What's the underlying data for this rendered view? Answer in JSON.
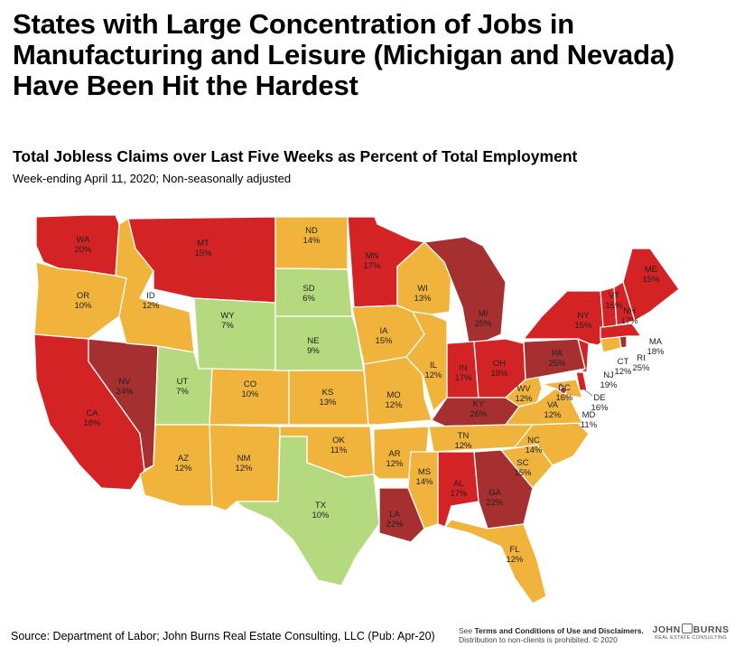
{
  "header": {
    "headline": "States with Large Concentration of Jobs in Manufacturing and Leisure (Michigan and Nevada) Have Been Hit the Hardest",
    "subtitle": "Total Jobless Claims over Last Five Weeks as Percent of Total Employment",
    "note": "Week-ending April 11, 2020; Non-seasonally adjusted"
  },
  "colors": {
    "dark_red": "#a62f2f",
    "red": "#d42325",
    "orange": "#f0b43c",
    "light_green": "#b5d97e",
    "border": "#ffffff"
  },
  "states": [
    {
      "code": "WA",
      "value": "20%",
      "color": "#d42325"
    },
    {
      "code": "OR",
      "value": "10%",
      "color": "#f0b43c"
    },
    {
      "code": "CA",
      "value": "18%",
      "color": "#d42325"
    },
    {
      "code": "NV",
      "value": "24%",
      "color": "#a62f2f"
    },
    {
      "code": "ID",
      "value": "12%",
      "color": "#f0b43c"
    },
    {
      "code": "MT",
      "value": "15%",
      "color": "#d42325"
    },
    {
      "code": "WY",
      "value": "7%",
      "color": "#b5d97e"
    },
    {
      "code": "UT",
      "value": "7%",
      "color": "#b5d97e"
    },
    {
      "code": "AZ",
      "value": "12%",
      "color": "#f0b43c"
    },
    {
      "code": "CO",
      "value": "10%",
      "color": "#f0b43c"
    },
    {
      "code": "NM",
      "value": "12%",
      "color": "#f0b43c"
    },
    {
      "code": "ND",
      "value": "14%",
      "color": "#f0b43c"
    },
    {
      "code": "SD",
      "value": "6%",
      "color": "#b5d97e"
    },
    {
      "code": "NE",
      "value": "9%",
      "color": "#b5d97e"
    },
    {
      "code": "KS",
      "value": "13%",
      "color": "#f0b43c"
    },
    {
      "code": "OK",
      "value": "11%",
      "color": "#f0b43c"
    },
    {
      "code": "TX",
      "value": "10%",
      "color": "#b5d97e"
    },
    {
      "code": "MN",
      "value": "17%",
      "color": "#d42325"
    },
    {
      "code": "IA",
      "value": "15%",
      "color": "#f0b43c"
    },
    {
      "code": "MO",
      "value": "12%",
      "color": "#f0b43c"
    },
    {
      "code": "AR",
      "value": "12%",
      "color": "#f0b43c"
    },
    {
      "code": "LA",
      "value": "22%",
      "color": "#a62f2f"
    },
    {
      "code": "WI",
      "value": "13%",
      "color": "#f0b43c"
    },
    {
      "code": "IL",
      "value": "12%",
      "color": "#f0b43c"
    },
    {
      "code": "MI",
      "value": "25%",
      "color": "#a62f2f"
    },
    {
      "code": "IN",
      "value": "17%",
      "color": "#d42325"
    },
    {
      "code": "OH",
      "value": "18%",
      "color": "#d42325"
    },
    {
      "code": "KY",
      "value": "26%",
      "color": "#a62f2f"
    },
    {
      "code": "TN",
      "value": "12%",
      "color": "#f0b43c"
    },
    {
      "code": "MS",
      "value": "14%",
      "color": "#f0b43c"
    },
    {
      "code": "AL",
      "value": "17%",
      "color": "#d42325"
    },
    {
      "code": "GA",
      "value": "22%",
      "color": "#a62f2f"
    },
    {
      "code": "FL",
      "value": "12%",
      "color": "#f0b43c"
    },
    {
      "code": "SC",
      "value": "15%",
      "color": "#f0b43c"
    },
    {
      "code": "NC",
      "value": "14%",
      "color": "#f0b43c"
    },
    {
      "code": "VA",
      "value": "12%",
      "color": "#f0b43c"
    },
    {
      "code": "WV",
      "value": "12%",
      "color": "#f0b43c"
    },
    {
      "code": "PA",
      "value": "25%",
      "color": "#a62f2f"
    },
    {
      "code": "NY",
      "value": "15%",
      "color": "#d42325"
    },
    {
      "code": "VT",
      "value": "15%",
      "color": "#d42325"
    },
    {
      "code": "NH",
      "value": "17%",
      "color": "#d42325"
    },
    {
      "code": "ME",
      "value": "15%",
      "color": "#d42325"
    },
    {
      "code": "MA",
      "value": "18%",
      "color": "#d42325"
    },
    {
      "code": "RI",
      "value": "25%",
      "color": "#a62f2f"
    },
    {
      "code": "CT",
      "value": "12%",
      "color": "#f0b43c"
    },
    {
      "code": "NJ",
      "value": "19%",
      "color": "#d42325"
    },
    {
      "code": "DE",
      "value": "16%",
      "color": "#d42325"
    },
    {
      "code": "MD",
      "value": "11%",
      "color": "#f0b43c"
    },
    {
      "code": "DC",
      "value": "16%",
      "color": "#d42325"
    }
  ],
  "footer": {
    "source": "Source: Department of Labor; John Burns Real Estate Consulting, LLC (Pub: Apr-20)",
    "terms_prefix": "See",
    "terms_bold": "Terms and Conditions of Use and Disclaimers.",
    "distribution": "Distribution to non-clients is prohibited. © 2020",
    "logo_left": "JOHN",
    "logo_right": "BURNS",
    "logo_sub": "REAL ESTATE CONSULTING"
  }
}
